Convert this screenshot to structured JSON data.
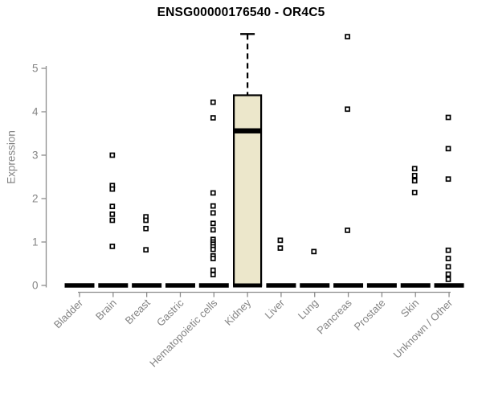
{
  "title": "ENSG00000176540 - OR4C5",
  "chart_data": {
    "type": "boxplot",
    "title": "ENSG00000176540 - OR4C5",
    "xlabel": "",
    "ylabel": "Expression",
    "ylim": [
      0,
      5.9
    ],
    "yticks": [
      0,
      1,
      2,
      3,
      4,
      5
    ],
    "grid": false,
    "legend": "none",
    "categories": [
      "Bladder",
      "Brain",
      "Breast",
      "Gastric",
      "Hematopoietic cells",
      "Kidney",
      "Liver",
      "Lung",
      "Pancreas",
      "Prostate",
      "Skin",
      "Unknown / Other"
    ],
    "series": [
      {
        "category": "Bladder",
        "q1": 0,
        "median": 0,
        "q3": 0,
        "whisker_high": 0,
        "outliers": []
      },
      {
        "category": "Brain",
        "q1": 0,
        "median": 0,
        "q3": 0,
        "whisker_high": 0,
        "outliers": [
          3.0,
          2.3,
          2.22,
          1.82,
          1.64,
          1.5,
          0.9
        ]
      },
      {
        "category": "Breast",
        "q1": 0,
        "median": 0,
        "q3": 0,
        "whisker_high": 0,
        "outliers": [
          1.58,
          1.5,
          1.31,
          0.82
        ]
      },
      {
        "category": "Gastric",
        "q1": 0,
        "median": 0,
        "q3": 0,
        "whisker_high": 0,
        "outliers": []
      },
      {
        "category": "Hematopoietic cells",
        "q1": 0,
        "median": 0,
        "q3": 0,
        "whisker_high": 0,
        "outliers": [
          4.22,
          3.86,
          2.13,
          1.83,
          1.67,
          1.43,
          1.28,
          1.06,
          1.0,
          0.95,
          0.89,
          0.83,
          0.68,
          0.62,
          0.35,
          0.25
        ]
      },
      {
        "category": "Kidney",
        "q1": 0,
        "median": 3.56,
        "q3": 4.38,
        "whisker_high": 5.79,
        "outliers": []
      },
      {
        "category": "Liver",
        "q1": 0,
        "median": 0,
        "q3": 0,
        "whisker_high": 0,
        "outliers": [
          1.04,
          0.86
        ]
      },
      {
        "category": "Lung",
        "q1": 0,
        "median": 0,
        "q3": 0,
        "whisker_high": 0,
        "outliers": [
          0.78
        ]
      },
      {
        "category": "Pancreas",
        "q1": 0,
        "median": 0,
        "q3": 0,
        "whisker_high": 0,
        "outliers": [
          5.73,
          4.06,
          1.27
        ]
      },
      {
        "category": "Prostate",
        "q1": 0,
        "median": 0,
        "q3": 0,
        "whisker_high": 0,
        "outliers": []
      },
      {
        "category": "Skin",
        "q1": 0,
        "median": 0,
        "q3": 0,
        "whisker_high": 0,
        "outliers": [
          2.69,
          2.53,
          2.41,
          2.14
        ]
      },
      {
        "category": "Unknown / Other",
        "q1": 0,
        "median": 0,
        "q3": 0,
        "whisker_high": 0,
        "outliers": [
          3.87,
          3.15,
          2.45,
          0.81,
          0.62,
          0.43,
          0.26,
          0.14
        ]
      }
    ],
    "colors": {
      "background": "#FFFFFF",
      "box_fill": "#ECE7CB",
      "box_stroke": "#000000",
      "median": "#000000",
      "outlier": "#000000",
      "axis_line": "#8C8C8C",
      "axis_text": "#848484",
      "title_text": "#000000"
    }
  }
}
